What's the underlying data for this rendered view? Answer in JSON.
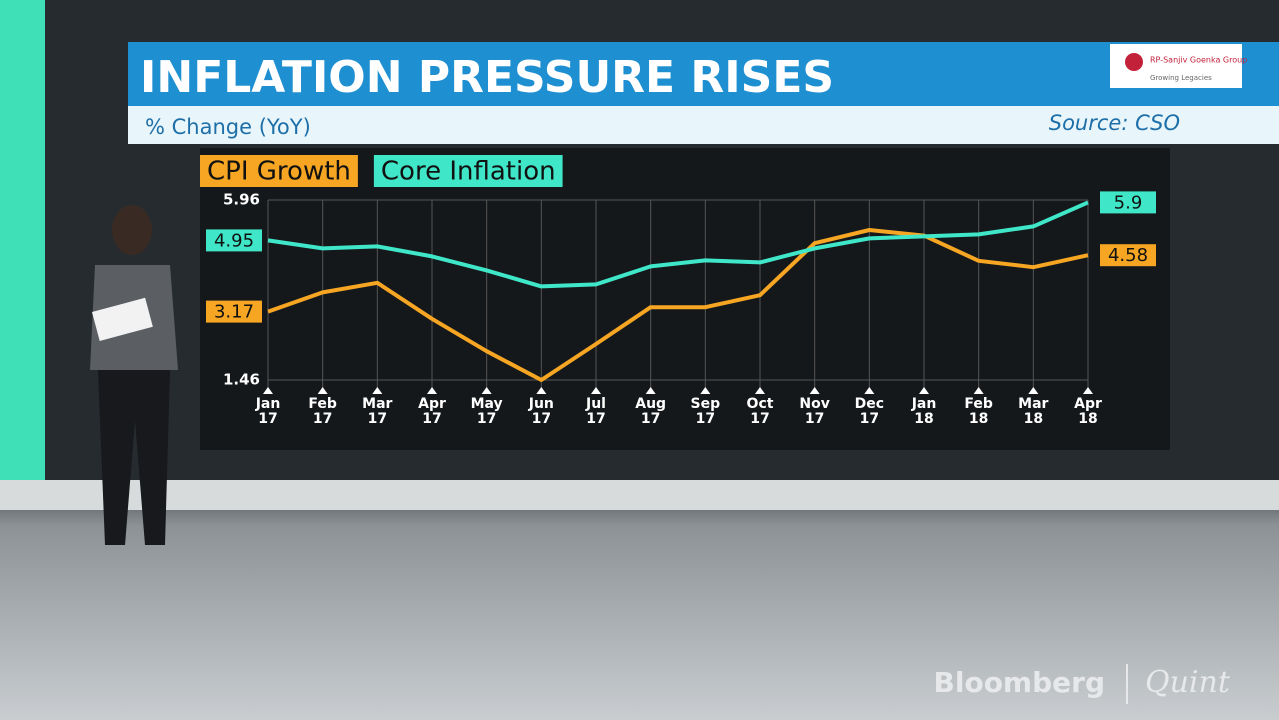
{
  "chart_data": {
    "type": "line",
    "title": "INFLATION PRESSURE RISES",
    "subtitle": "% Change (YoY)",
    "source": "Source: CSO",
    "categories": [
      "Jan 17",
      "Feb 17",
      "Mar 17",
      "Apr 17",
      "May 17",
      "Jun 17",
      "Jul 17",
      "Aug 17",
      "Sep 17",
      "Oct 17",
      "Nov 17",
      "Dec 17",
      "Jan 18",
      "Feb 18",
      "Mar 18",
      "Apr 18"
    ],
    "series": [
      {
        "name": "CPI Growth",
        "color": "#f6a623",
        "values": [
          3.17,
          3.65,
          3.89,
          2.99,
          2.18,
          1.46,
          2.36,
          3.28,
          3.28,
          3.58,
          4.88,
          5.21,
          5.07,
          4.44,
          4.28,
          4.58
        ]
      },
      {
        "name": "Core Inflation",
        "color": "#3fe6c8",
        "values": [
          4.95,
          4.75,
          4.8,
          4.55,
          4.2,
          3.8,
          3.85,
          4.3,
          4.45,
          4.4,
          4.75,
          5.0,
          5.05,
          5.1,
          5.3,
          5.9
        ]
      }
    ],
    "ylim": [
      1.46,
      5.96
    ],
    "yticks": [
      1.46,
      5.96
    ],
    "grid": true
  },
  "branding": {
    "sponsor": "RP-Sanjiv Goenka Group",
    "tagline": "Growing Legacies",
    "network": "Bloomberg",
    "partner": "Quint"
  }
}
